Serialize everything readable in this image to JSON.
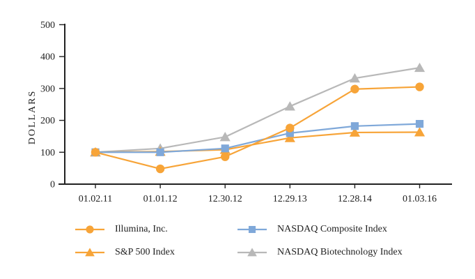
{
  "chart_data": {
    "type": "line",
    "title": "",
    "ylabel": "DOLLARS",
    "xlabel": "",
    "ylim": [
      0,
      500
    ],
    "yticks": [
      0,
      100,
      200,
      300,
      400,
      500
    ],
    "grid": false,
    "legend_position": "bottom",
    "categories": [
      "01.02.11",
      "01.01.12",
      "12.30.12",
      "12.29.13",
      "12.28.14",
      "01.03.16"
    ],
    "series": [
      {
        "name": "Illumina, Inc.",
        "marker": "circle",
        "color": "#F7A438",
        "values": [
          100,
          48,
          86,
          176,
          298,
          305
        ]
      },
      {
        "name": "NASDAQ Composite Index",
        "marker": "square",
        "color": "#7FA8D9",
        "values": [
          100,
          100,
          112,
          160,
          182,
          189
        ]
      },
      {
        "name": "S&P 500 Index",
        "marker": "triangle",
        "color": "#F7A438",
        "values": [
          100,
          102,
          108,
          145,
          162,
          163
        ]
      },
      {
        "name": "NASDAQ Biotechnology Index",
        "marker": "triangle",
        "color": "#B8B8B8",
        "values": [
          100,
          112,
          148,
          244,
          332,
          365
        ]
      }
    ],
    "colors": {
      "axis": "#212121",
      "text": "#212121"
    }
  }
}
